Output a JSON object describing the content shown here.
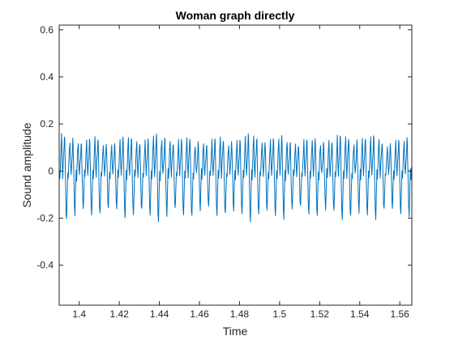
{
  "chart_data": {
    "type": "line",
    "title": "Woman graph directly",
    "xlabel": "Time",
    "ylabel": "Sound amplitude",
    "xlim": [
      1.39,
      1.566
    ],
    "ylim": [
      -0.57,
      0.62
    ],
    "grid": false,
    "box": true,
    "xticks": [
      1.4,
      1.42,
      1.44,
      1.46,
      1.48,
      1.5,
      1.52,
      1.54,
      1.56
    ],
    "xtick_labels": [
      "1.4",
      "1.42",
      "1.44",
      "1.46",
      "1.48",
      "1.5",
      "1.52",
      "1.54",
      "1.56"
    ],
    "yticks": [
      0.6,
      0.4,
      0.2,
      0,
      -0.2,
      -0.4
    ],
    "ytick_labels": [
      "0.6",
      "0.4",
      "0.2",
      "0",
      "-0.2",
      "-0.4"
    ],
    "series": [
      {
        "color": "#0072bd",
        "period": 0.00417,
        "phase": 1.3912,
        "base_waveform": [
          [
            0.0,
            0.13
          ],
          [
            0.08,
            0.02
          ],
          [
            0.14,
            -0.02
          ],
          [
            0.2,
            0.03
          ],
          [
            0.28,
            0.07
          ],
          [
            0.34,
            0.13
          ],
          [
            0.38,
            0.12
          ],
          [
            0.42,
            0.05
          ],
          [
            0.48,
            -0.05
          ],
          [
            0.54,
            -0.15
          ],
          [
            0.6,
            -0.18
          ],
          [
            0.66,
            -0.1
          ],
          [
            0.74,
            0.0
          ],
          [
            0.8,
            -0.03
          ],
          [
            0.86,
            0.02
          ],
          [
            0.92,
            0.08
          ],
          [
            1.0,
            0.13
          ]
        ]
      }
    ]
  }
}
